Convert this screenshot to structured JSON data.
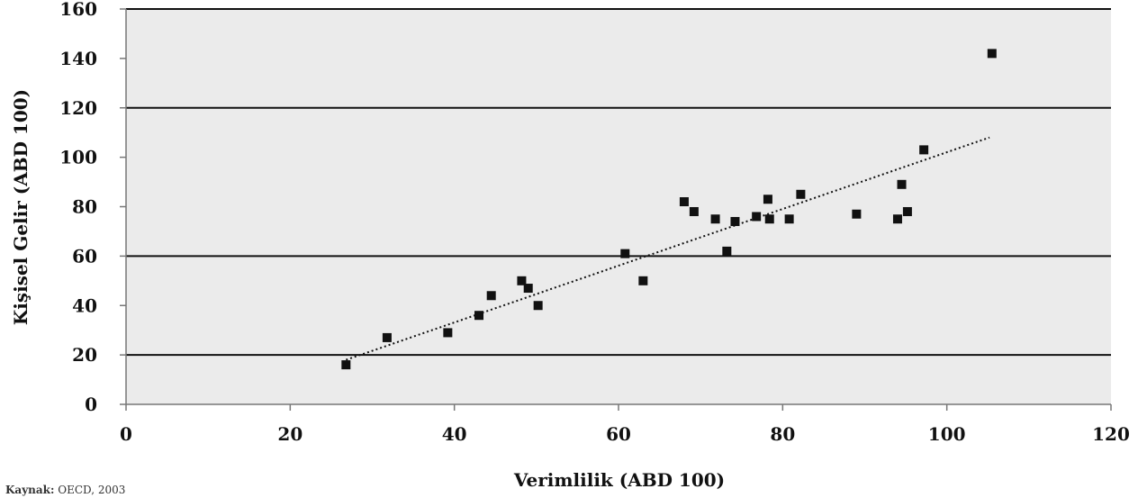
{
  "chart_data": {
    "type": "scatter",
    "title": "",
    "xlabel": "Verimlilik (ABD 100)",
    "ylabel": "Kişisel Gelir (ABD 100)",
    "xlim": [
      0,
      120
    ],
    "ylim": [
      0,
      160
    ],
    "x_ticks": [
      0,
      20,
      40,
      60,
      80,
      100,
      120
    ],
    "y_ticks": [
      0,
      20,
      40,
      60,
      80,
      100,
      120,
      140,
      160
    ],
    "grid_y": [
      20,
      60,
      120,
      160
    ],
    "grid": "horizontal",
    "legend": "none",
    "colors": {
      "plot_background": "#ebebeb",
      "marker": "#111111",
      "trendline": "#111111"
    },
    "points": [
      {
        "x": 26.8,
        "y": 16
      },
      {
        "x": 31.8,
        "y": 27
      },
      {
        "x": 39.2,
        "y": 29
      },
      {
        "x": 43.0,
        "y": 36
      },
      {
        "x": 44.5,
        "y": 44
      },
      {
        "x": 48.2,
        "y": 50
      },
      {
        "x": 49.0,
        "y": 47
      },
      {
        "x": 50.2,
        "y": 40
      },
      {
        "x": 60.8,
        "y": 61
      },
      {
        "x": 63.0,
        "y": 50
      },
      {
        "x": 68.0,
        "y": 82
      },
      {
        "x": 69.2,
        "y": 78
      },
      {
        "x": 71.8,
        "y": 75
      },
      {
        "x": 73.2,
        "y": 62
      },
      {
        "x": 74.2,
        "y": 74
      },
      {
        "x": 76.8,
        "y": 76
      },
      {
        "x": 78.2,
        "y": 83
      },
      {
        "x": 78.4,
        "y": 75
      },
      {
        "x": 80.8,
        "y": 75
      },
      {
        "x": 82.2,
        "y": 85
      },
      {
        "x": 89.0,
        "y": 77
      },
      {
        "x": 94.0,
        "y": 75
      },
      {
        "x": 94.5,
        "y": 89
      },
      {
        "x": 95.2,
        "y": 78
      },
      {
        "x": 97.2,
        "y": 103
      },
      {
        "x": 105.5,
        "y": 142
      }
    ],
    "trendline": {
      "style": "dotted",
      "x0": 26.8,
      "y0": 18,
      "x1": 105.2,
      "y1": 108
    }
  },
  "source": {
    "label": "Kaynak:",
    "text": "OECD, 2003"
  }
}
